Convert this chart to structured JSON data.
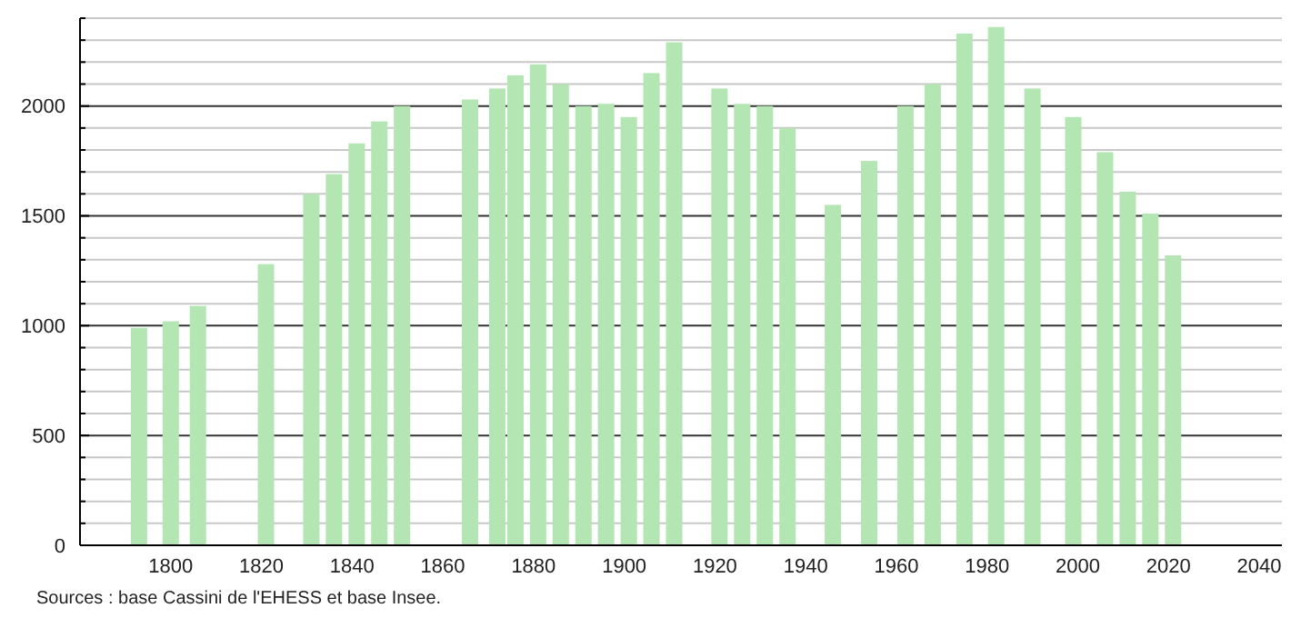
{
  "chart_data": {
    "type": "bar",
    "x": [
      1793,
      1800,
      1806,
      1821,
      1831,
      1836,
      1841,
      1846,
      1851,
      1866,
      1872,
      1876,
      1881,
      1886,
      1891,
      1896,
      1901,
      1906,
      1911,
      1921,
      1926,
      1931,
      1936,
      1946,
      1954,
      1962,
      1968,
      1975,
      1982,
      1990,
      1999,
      2006,
      2011,
      2016,
      2021
    ],
    "values": [
      990,
      1020,
      1090,
      1280,
      1600,
      1690,
      1830,
      1930,
      2000,
      2030,
      2080,
      2140,
      2190,
      2100,
      2000,
      2010,
      1950,
      2150,
      2290,
      2080,
      2010,
      2000,
      1900,
      1550,
      1750,
      2000,
      2100,
      2330,
      2360,
      2080,
      1950,
      1790,
      1610,
      1510,
      1320
    ],
    "color": "#b3e6b3",
    "xlim": [
      1780,
      2045
    ],
    "xticks": [
      1800,
      1820,
      1840,
      1860,
      1880,
      1900,
      1920,
      1940,
      1960,
      1980,
      2000,
      2020,
      2040
    ],
    "ylim": [
      0,
      2400
    ],
    "yticks": [
      0,
      {
        "value": 100,
        "label": null
      },
      {
        "value": 200,
        "label": null
      },
      {
        "value": 300,
        "label": null
      },
      {
        "value": 400,
        "label": null
      },
      500,
      {
        "value": 600,
        "label": null
      },
      {
        "value": 700,
        "label": null
      },
      {
        "value": 800,
        "label": null
      },
      {
        "value": 900,
        "label": null
      },
      1000,
      {
        "value": 1100,
        "label": null
      },
      {
        "value": 1200,
        "label": null
      },
      {
        "value": 1300,
        "label": null
      },
      {
        "value": 1400,
        "label": null
      },
      1500,
      {
        "value": 1600,
        "label": null
      },
      {
        "value": 1700,
        "label": null
      },
      {
        "value": 1800,
        "label": null
      },
      {
        "value": 1900,
        "label": null
      },
      2000,
      {
        "value": 2100,
        "label": null
      },
      {
        "value": 2200,
        "label": null
      },
      {
        "value": 2300,
        "label": null
      },
      {
        "value": 2400,
        "label": null
      }
    ],
    "grid": "y",
    "annotations": [
      "Sources : base Cassini de l'EHESS et base Insee."
    ]
  }
}
